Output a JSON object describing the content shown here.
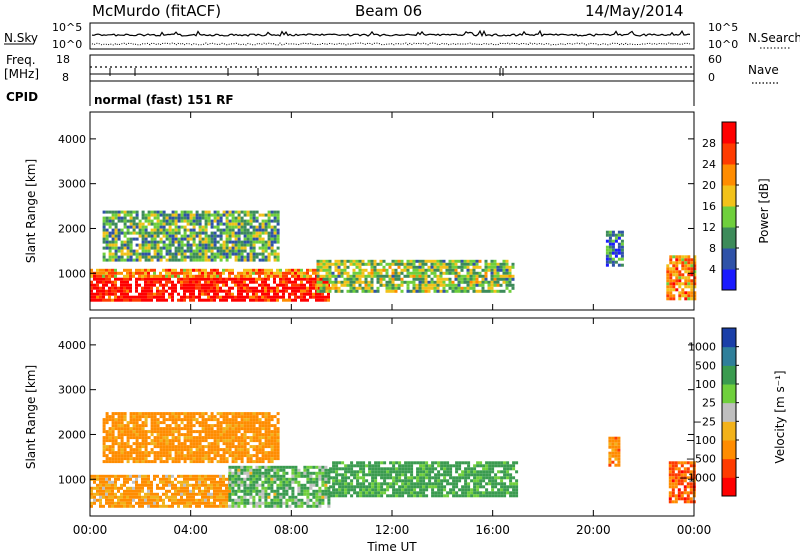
{
  "header": {
    "title": "McMurdo (fitACF)",
    "beam": "Beam 06",
    "date": "14/May/2014"
  },
  "top_panels": {
    "nsky_label": "N.Sky",
    "nsky_ticks": [
      "10^5",
      "10^0"
    ],
    "nsearch_label": "N.Search",
    "nsearch_ticks": [
      "10^5",
      "10^0"
    ],
    "freq_label_line1": "Freq.",
    "freq_label_line2": "[MHz]",
    "freq_ticks": [
      "18",
      "8"
    ],
    "nave_label": "Nave",
    "nave_ticks": [
      "60",
      "0"
    ],
    "cpid_label": "CPID",
    "cpid_text": "normal (fast) 151 RF"
  },
  "chart_data": [
    {
      "type": "heatmap",
      "panel": "power",
      "xlabel": "",
      "ylabel": "Slant Range [km]",
      "x_ticks": [
        "00:00",
        "04:00",
        "08:00",
        "12:00",
        "16:00",
        "20:00",
        "00:00"
      ],
      "xlim_hours": [
        0,
        24
      ],
      "ylim_km": [
        180,
        4600
      ],
      "y_ticks": [
        1000,
        2000,
        3000,
        4000
      ],
      "colorbar": {
        "label": "Power [dB]",
        "ticks": [
          4,
          8,
          12,
          16,
          20,
          24,
          28
        ],
        "colors": [
          "#1a1aff",
          "#2f52a8",
          "#3d8b5a",
          "#6fcf3c",
          "#f2c21a",
          "#ff8c00",
          "#ff3b00",
          "#ff0000"
        ]
      },
      "regions": [
        {
          "t0": 0.0,
          "t1": 9.5,
          "r0": 400,
          "r1": 900,
          "value_db": 30
        },
        {
          "t0": 0.0,
          "t1": 9.0,
          "r0": 900,
          "r1": 1100,
          "value_db": 22
        },
        {
          "t0": 9.0,
          "t1": 16.8,
          "r0": 600,
          "r1": 1300,
          "value_db": 14
        },
        {
          "t0": 0.5,
          "t1": 7.5,
          "r0": 1300,
          "r1": 2400,
          "value_db": 12
        },
        {
          "t0": 20.5,
          "t1": 21.1,
          "r0": 1200,
          "r1": 1950,
          "value_db": 8
        },
        {
          "t0": 22.9,
          "t1": 24.0,
          "r0": 400,
          "r1": 1400,
          "value_db": 22
        }
      ]
    },
    {
      "type": "heatmap",
      "panel": "velocity",
      "xlabel": "Time UT",
      "ylabel": "Slant Range [km]",
      "x_ticks": [
        "00:00",
        "04:00",
        "08:00",
        "12:00",
        "16:00",
        "20:00",
        "00:00"
      ],
      "xlim_hours": [
        0,
        24
      ],
      "ylim_km": [
        180,
        4600
      ],
      "y_ticks": [
        1000,
        2000,
        3000,
        4000
      ],
      "colorbar": {
        "label": "Velocity [m s⁻¹]",
        "ticks": [
          "1000",
          "500",
          "100",
          "25",
          "−25",
          "−100",
          "−500",
          "−1000"
        ],
        "colors": [
          "#1a3fa8",
          "#2f7f9a",
          "#3a9b4f",
          "#6fcf3c",
          "#bfbfbf",
          "#f2b21a",
          "#ff8c00",
          "#ff3b00",
          "#ff0000"
        ]
      },
      "regions": [
        {
          "t0": 0.0,
          "t1": 5.5,
          "r0": 400,
          "r1": 1100,
          "value_ms": -150
        },
        {
          "t0": 5.5,
          "t1": 9.5,
          "r0": 400,
          "r1": 1300,
          "value_ms": 120
        },
        {
          "t0": 9.5,
          "t1": 17.0,
          "r0": 600,
          "r1": 1400,
          "value_ms": 200
        },
        {
          "t0": 0.5,
          "t1": 7.5,
          "r0": 1400,
          "r1": 2500,
          "value_ms": -200
        },
        {
          "t0": 20.6,
          "t1": 21.0,
          "r0": 1300,
          "r1": 1950,
          "value_ms": -300
        },
        {
          "t0": 23.0,
          "t1": 24.0,
          "r0": 500,
          "r1": 1400,
          "value_ms": -600
        }
      ]
    }
  ]
}
